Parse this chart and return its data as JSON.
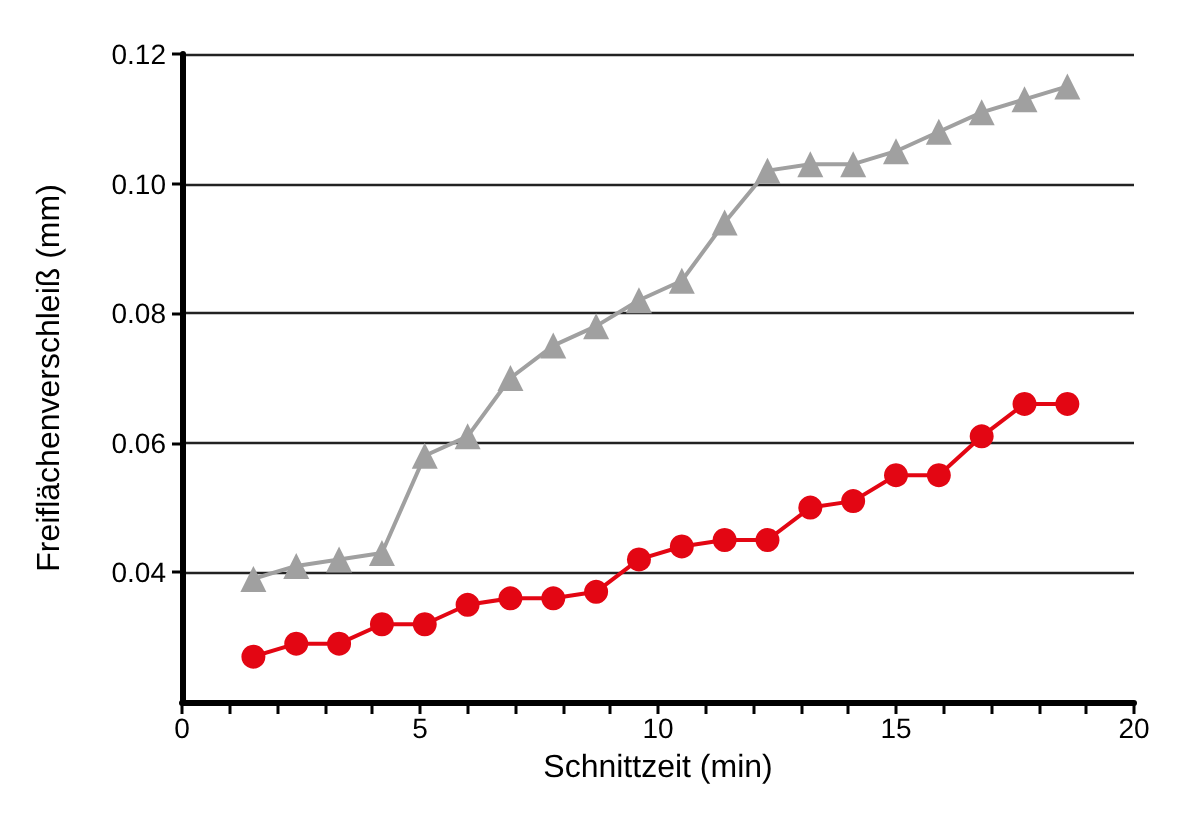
{
  "chart_data": {
    "type": "line",
    "xlabel": "Schnittzeit (min)",
    "ylabel": "Freiflächenverschleiß (mm)",
    "x": [
      1.5,
      2.4,
      3.3,
      4.2,
      5.1,
      6.0,
      6.9,
      7.8,
      8.7,
      9.6,
      10.5,
      11.4,
      12.3,
      13.2,
      14.1,
      15.0,
      15.9,
      16.8,
      17.7,
      18.6
    ],
    "series": [
      {
        "color": "#a0a0a0",
        "marker": "triangle",
        "values": [
          0.039,
          0.041,
          0.042,
          0.043,
          0.058,
          0.061,
          0.07,
          0.075,
          0.078,
          0.082,
          0.085,
          0.094,
          0.102,
          0.103,
          0.103,
          0.105,
          0.108,
          0.111,
          0.113,
          0.115
        ]
      },
      {
        "color": "#e30613",
        "marker": "circle",
        "values": [
          0.027,
          0.029,
          0.029,
          0.032,
          0.032,
          0.035,
          0.036,
          0.036,
          0.037,
          0.042,
          0.044,
          0.045,
          0.045,
          0.05,
          0.051,
          0.055,
          0.055,
          0.061,
          0.066,
          0.066
        ]
      }
    ],
    "xlim": [
      0,
      20
    ],
    "xticks": [
      0,
      {
        "value": 1,
        "label": null
      },
      {
        "value": 2,
        "label": null
      },
      {
        "value": 3,
        "label": null
      },
      {
        "value": 4,
        "label": null
      },
      5,
      {
        "value": 6,
        "label": null
      },
      {
        "value": 7,
        "label": null
      },
      {
        "value": 8,
        "label": null
      },
      {
        "value": 9,
        "label": null
      },
      10,
      {
        "value": 11,
        "label": null
      },
      {
        "value": 12,
        "label": null
      },
      {
        "value": 13,
        "label": null
      },
      {
        "value": 14,
        "label": null
      },
      15,
      {
        "value": 16,
        "label": null
      },
      {
        "value": 17,
        "label": null
      },
      {
        "value": 18,
        "label": null
      },
      {
        "value": 19,
        "label": null
      },
      20
    ],
    "ylim": [
      0.02,
      0.12
    ],
    "yticks": [
      {
        "value": 0.04,
        "label": "0.04"
      },
      {
        "value": 0.06,
        "label": "0.06"
      },
      {
        "value": 0.08,
        "label": "0.08"
      },
      {
        "value": 0.1,
        "label": "0.10"
      },
      {
        "value": 0.12,
        "label": "0.12"
      }
    ],
    "grid": "y"
  }
}
